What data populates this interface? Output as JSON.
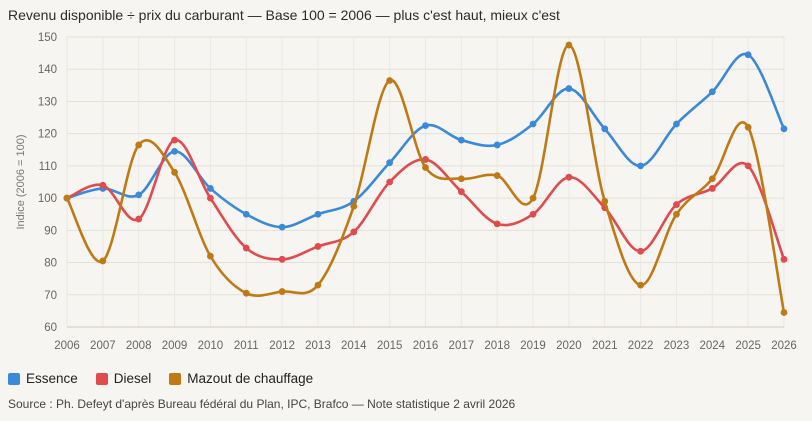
{
  "chart_data": {
    "type": "line",
    "title": "Revenu disponible ÷ prix du carburant — Base 100 = 2006 — plus c'est haut, mieux c'est",
    "ylabel": "Indice (2006 = 100)",
    "xlabel": "",
    "ylim": [
      60,
      150
    ],
    "yticks": [
      60,
      70,
      80,
      90,
      100,
      110,
      120,
      130,
      140,
      150
    ],
    "grid": true,
    "legend_position": "bottom-left",
    "categories": [
      "2006",
      "2007",
      "2008",
      "2009",
      "2010",
      "2011",
      "2012",
      "2013",
      "2014",
      "2015",
      "2016",
      "2017",
      "2018",
      "2019",
      "2020",
      "2021",
      "2022",
      "2023",
      "2024",
      "2025",
      "2026"
    ],
    "series": [
      {
        "name": "Essence",
        "color": "#3b8ad9",
        "values": [
          100,
          103,
          101,
          114.5,
          103,
          95,
          91,
          95,
          99,
          111,
          122.5,
          118,
          116.5,
          123,
          134,
          121.5,
          110,
          123,
          133,
          144.5,
          121.5
        ]
      },
      {
        "name": "Diesel",
        "color": "#e04b4f",
        "values": [
          100,
          104,
          93.5,
          118,
          100,
          84.5,
          81,
          85,
          89.5,
          105,
          112,
          102,
          92,
          95,
          106.5,
          97,
          83.5,
          98,
          103,
          110,
          81
        ]
      },
      {
        "name": "Mazout de chauffage",
        "color": "#bf7a16",
        "values": [
          100,
          80.5,
          116.5,
          108,
          82,
          70.5,
          71,
          73,
          97.5,
          136.5,
          109.5,
          106,
          107,
          100,
          147.5,
          99,
          73,
          95,
          106,
          122,
          64.5
        ]
      }
    ]
  },
  "source": "Source : Ph. Defeyt d'après Bureau fédéral du Plan, IPC, Brafco — Note statistique 2 avril 2026"
}
